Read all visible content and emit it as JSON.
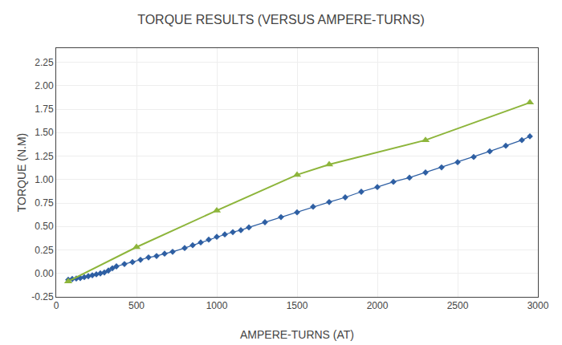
{
  "chart_data": {
    "type": "line",
    "title": "TORQUE RESULTS (VERSUS AMPERE-TURNS)",
    "xlabel": "AMPERE-TURNS (AT)",
    "ylabel": "TORQUE (N.M)",
    "xlim": [
      0,
      3000
    ],
    "ylim": [
      -0.25,
      2.4
    ],
    "xticks": [
      0,
      500,
      1000,
      1500,
      2000,
      2500,
      3000
    ],
    "yticks": [
      -0.25,
      {
        "value": 0.0,
        "label": "0.00"
      },
      0.25,
      {
        "value": 0.5,
        "label": "0.50"
      },
      0.75,
      {
        "value": 1.0,
        "label": "1.00"
      },
      1.25,
      {
        "value": 1.5,
        "label": "1.50"
      },
      1.75,
      {
        "value": 2.0,
        "label": "2.00"
      },
      2.25
    ],
    "grid": true,
    "series": [
      {
        "color": "#2e5fa3",
        "marker": "diamond",
        "x": [
          75,
          100,
          125,
          150,
          175,
          200,
          225,
          250,
          275,
          300,
          325,
          350,
          375,
          425,
          475,
          525,
          575,
          625,
          675,
          725,
          800,
          850,
          900,
          950,
          1000,
          1050,
          1100,
          1150,
          1200,
          1300,
          1400,
          1500,
          1600,
          1700,
          1800,
          1900,
          2000,
          2100,
          2200,
          2300,
          2400,
          2500,
          2600,
          2700,
          2800,
          2900,
          2950
        ],
        "values": [
          -0.068,
          -0.06,
          -0.055,
          -0.05,
          -0.04,
          -0.03,
          -0.02,
          -0.01,
          0.0,
          0.01,
          0.03,
          0.055,
          0.075,
          0.1,
          0.12,
          0.145,
          0.17,
          0.185,
          0.21,
          0.23,
          0.27,
          0.3,
          0.33,
          0.36,
          0.39,
          0.415,
          0.44,
          0.46,
          0.49,
          0.545,
          0.6,
          0.65,
          0.71,
          0.76,
          0.81,
          0.87,
          0.92,
          0.975,
          1.02,
          1.075,
          1.13,
          1.185,
          1.24,
          1.3,
          1.36,
          1.42,
          1.46
        ]
      },
      {
        "color": "#8db53b",
        "marker": "triangle-up",
        "x": [
          75,
          500,
          1000,
          1500,
          1700,
          2300,
          2950
        ],
        "values": [
          -0.085,
          0.28,
          0.67,
          1.05,
          1.16,
          1.42,
          1.82
        ]
      }
    ]
  }
}
